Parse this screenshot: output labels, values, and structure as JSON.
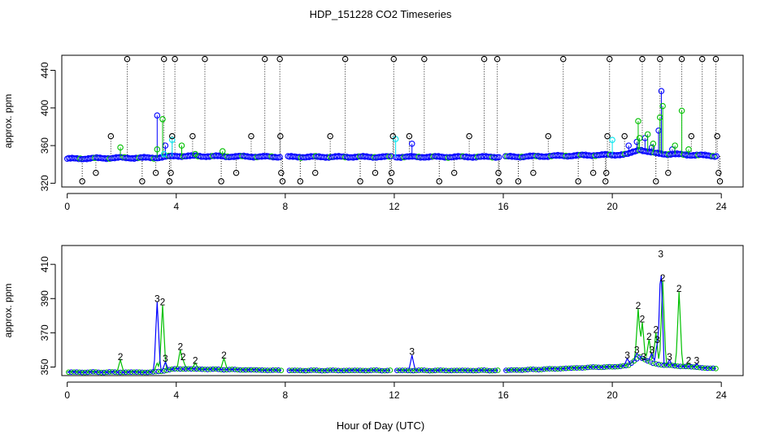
{
  "figure": {
    "title": "HDP_151228  CO2 Timeseries",
    "xlabel": "Hour of Day (UTC)"
  },
  "colors": {
    "black_series": "#000000",
    "blue_series": "#0000ff",
    "green_series": "#00c000",
    "cyan_series": "#00e5ee"
  },
  "chart_data": [
    {
      "type": "scatter",
      "title": "HDP_151228  CO2 Timeseries",
      "xlabel": "",
      "ylabel": "approx. ppm",
      "xlim": [
        -0.2,
        24.8
      ],
      "ylim": [
        316,
        456
      ],
      "xticks": [
        0,
        4,
        8,
        12,
        16,
        20,
        24
      ],
      "yticks": [
        320,
        360,
        400,
        440
      ],
      "gaps": [
        [
          7.85,
          8.05
        ],
        [
          11.9,
          12.05
        ],
        [
          15.85,
          16.05
        ]
      ],
      "baseline": {
        "points": [
          [
            0,
            346
          ],
          [
            2,
            347
          ],
          [
            3.2,
            347
          ],
          [
            4,
            349
          ],
          [
            8,
            348
          ],
          [
            11.9,
            348
          ],
          [
            15.85,
            348
          ],
          [
            16,
            348
          ],
          [
            18,
            349
          ],
          [
            19.5,
            350
          ],
          [
            20,
            350
          ],
          [
            20.6,
            351
          ],
          [
            21,
            356
          ],
          [
            21.5,
            352
          ],
          [
            22,
            351
          ],
          [
            23,
            350
          ],
          [
            23.8,
            349
          ]
        ]
      },
      "series": [
        {
          "name": "blue",
          "color": "blue_series",
          "spikes": [
            [
              3.3,
              392
            ],
            [
              3.6,
              360
            ],
            [
              12.65,
              362
            ],
            [
              20.6,
              360
            ],
            [
              20.9,
              364
            ],
            [
              21.2,
              368
            ],
            [
              21.45,
              358
            ],
            [
              21.7,
              376
            ],
            [
              21.8,
              418
            ],
            [
              22.2,
              356
            ]
          ]
        },
        {
          "name": "green",
          "color": "green_series",
          "spikes": [
            [
              1.95,
              358
            ],
            [
              3.3,
              356
            ],
            [
              3.5,
              388
            ],
            [
              4.2,
              360
            ],
            [
              4.7,
              351
            ],
            [
              5.7,
              354
            ],
            [
              20.95,
              386
            ],
            [
              21.0,
              368
            ],
            [
              21.3,
              372
            ],
            [
              21.5,
              362
            ],
            [
              21.75,
              390
            ],
            [
              21.85,
              402
            ],
            [
              22.3,
              360
            ],
            [
              22.55,
              397
            ],
            [
              22.8,
              356
            ]
          ]
        },
        {
          "name": "cyan",
          "color": "cyan_series",
          "spikes": [
            [
              3.55,
              351
            ],
            [
              3.85,
              366
            ],
            [
              12.05,
              367
            ],
            [
              20.0,
              366
            ]
          ]
        },
        {
          "name": "black",
          "color": "black_series",
          "values": [
            [
              0.55,
              322
            ],
            [
              1.05,
              331
            ],
            [
              1.6,
              370
            ],
            [
              2.2,
              452
            ],
            [
              2.75,
              322
            ],
            [
              3.25,
              331
            ],
            [
              3.55,
              452
            ],
            [
              3.75,
              322
            ],
            [
              3.8,
              331
            ],
            [
              3.85,
              370
            ],
            [
              3.95,
              452
            ],
            [
              4.6,
              370
            ],
            [
              5.05,
              452
            ],
            [
              5.65,
              322
            ],
            [
              6.2,
              331
            ],
            [
              6.75,
              370
            ],
            [
              7.25,
              452
            ],
            [
              7.8,
              452
            ],
            [
              7.82,
              370
            ],
            [
              7.85,
              331
            ],
            [
              7.9,
              322
            ],
            [
              8.55,
              322
            ],
            [
              9.1,
              331
            ],
            [
              9.65,
              370
            ],
            [
              10.2,
              452
            ],
            [
              10.75,
              322
            ],
            [
              11.3,
              331
            ],
            [
              11.85,
              322
            ],
            [
              11.9,
              331
            ],
            [
              11.95,
              370
            ],
            [
              11.98,
              452
            ],
            [
              12.55,
              370
            ],
            [
              13.1,
              452
            ],
            [
              13.65,
              322
            ],
            [
              14.2,
              331
            ],
            [
              14.75,
              370
            ],
            [
              15.3,
              452
            ],
            [
              15.78,
              452
            ],
            [
              15.82,
              331
            ],
            [
              15.85,
              322
            ],
            [
              16.55,
              322
            ],
            [
              17.1,
              331
            ],
            [
              17.65,
              370
            ],
            [
              18.2,
              452
            ],
            [
              18.75,
              322
            ],
            [
              19.3,
              331
            ],
            [
              19.75,
              322
            ],
            [
              19.78,
              331
            ],
            [
              19.82,
              370
            ],
            [
              19.9,
              452
            ],
            [
              20.45,
              370
            ],
            [
              21.1,
              452
            ],
            [
              21.6,
              322
            ],
            [
              21.75,
              452
            ],
            [
              22.05,
              331
            ],
            [
              22.55,
              452
            ],
            [
              22.9,
              370
            ],
            [
              23.3,
              452
            ],
            [
              23.8,
              452
            ],
            [
              23.85,
              370
            ],
            [
              23.9,
              331
            ],
            [
              23.95,
              322
            ]
          ]
        }
      ]
    },
    {
      "type": "line",
      "title": "",
      "xlabel": "Hour of Day (UTC)",
      "ylabel": "approx. ppm",
      "xlim": [
        -0.2,
        24.8
      ],
      "ylim": [
        345,
        421
      ],
      "xticks": [
        0,
        4,
        8,
        12,
        16,
        20,
        24
      ],
      "yticks": [
        350,
        370,
        390,
        410
      ],
      "gaps": [
        [
          7.85,
          8.05
        ],
        [
          11.9,
          12.05
        ],
        [
          15.85,
          16.05
        ]
      ],
      "baseline": {
        "points": [
          [
            0,
            347
          ],
          [
            2,
            347
          ],
          [
            3.2,
            347
          ],
          [
            4,
            349
          ],
          [
            8,
            348
          ],
          [
            11.9,
            348
          ],
          [
            15.85,
            348
          ],
          [
            16,
            348
          ],
          [
            18,
            349
          ],
          [
            19.5,
            350
          ],
          [
            20,
            350
          ],
          [
            20.6,
            351
          ],
          [
            21,
            356
          ],
          [
            21.5,
            352
          ],
          [
            22,
            351
          ],
          [
            23,
            350
          ],
          [
            23.8,
            349
          ]
        ]
      },
      "point_symbol": "o",
      "series": [
        {
          "name": "3",
          "label": "3",
          "color": "blue_series",
          "peaks": [
            [
              3.3,
              388
            ],
            [
              3.6,
              353
            ],
            [
              12.65,
              357
            ],
            [
              20.55,
              355
            ],
            [
              20.9,
              358
            ],
            [
              21.15,
              354
            ],
            [
              21.45,
              358
            ],
            [
              21.65,
              364
            ],
            [
              21.78,
              414
            ],
            [
              22.1,
              354
            ],
            [
              23.1,
              352
            ]
          ]
        },
        {
          "name": "2",
          "label": "2",
          "color": "green_series",
          "peaks": [
            [
              1.95,
              354
            ],
            [
              3.3,
              352
            ],
            [
              3.5,
              386
            ],
            [
              4.15,
              360
            ],
            [
              4.25,
              354
            ],
            [
              4.7,
              352
            ],
            [
              5.75,
              355
            ],
            [
              20.95,
              384
            ],
            [
              21.1,
              376
            ],
            [
              21.35,
              366
            ],
            [
              21.6,
              370
            ],
            [
              21.85,
              400
            ],
            [
              22.45,
              394
            ],
            [
              22.8,
              352
            ]
          ]
        }
      ],
      "point_labels": [
        {
          "series": "3",
          "x": 3.3,
          "y": 388
        },
        {
          "series": "3",
          "x": 3.6,
          "y": 353
        },
        {
          "series": "3",
          "x": 12.65,
          "y": 357
        },
        {
          "series": "3",
          "x": 20.55,
          "y": 355
        },
        {
          "series": "3",
          "x": 20.9,
          "y": 358
        },
        {
          "series": "3",
          "x": 21.15,
          "y": 354
        },
        {
          "series": "3",
          "x": 21.45,
          "y": 358
        },
        {
          "series": "3",
          "x": 21.65,
          "y": 364
        },
        {
          "series": "3",
          "x": 21.78,
          "y": 414
        },
        {
          "series": "3",
          "x": 22.1,
          "y": 354
        },
        {
          "series": "3",
          "x": 23.1,
          "y": 352
        },
        {
          "series": "2",
          "x": 1.95,
          "y": 354
        },
        {
          "series": "2",
          "x": 3.5,
          "y": 386
        },
        {
          "series": "2",
          "x": 4.15,
          "y": 360
        },
        {
          "series": "2",
          "x": 4.25,
          "y": 354
        },
        {
          "series": "2",
          "x": 4.7,
          "y": 352
        },
        {
          "series": "2",
          "x": 5.75,
          "y": 355
        },
        {
          "series": "2",
          "x": 20.95,
          "y": 384
        },
        {
          "series": "2",
          "x": 21.1,
          "y": 376
        },
        {
          "series": "2",
          "x": 21.35,
          "y": 366
        },
        {
          "series": "2",
          "x": 21.6,
          "y": 370
        },
        {
          "series": "2",
          "x": 21.85,
          "y": 400
        },
        {
          "series": "2",
          "x": 22.45,
          "y": 394
        },
        {
          "series": "2",
          "x": 22.8,
          "y": 352
        }
      ]
    }
  ]
}
